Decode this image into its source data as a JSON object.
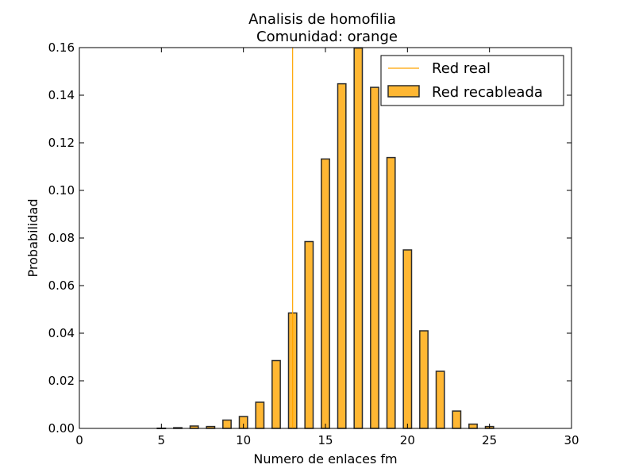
{
  "chart_data": {
    "type": "bar",
    "title": "Analisis de homofilia",
    "subtitle": "Comunidad: orange",
    "xlabel": "Numero de enlaces fm",
    "ylabel": "Probabilidad",
    "xlim": [
      0,
      30
    ],
    "ylim": [
      0,
      0.16
    ],
    "xticks": [
      "0",
      "5",
      "10",
      "15",
      "20",
      "25",
      "30"
    ],
    "yticks": [
      "0.00",
      "0.02",
      "0.04",
      "0.06",
      "0.08",
      "0.10",
      "0.12",
      "0.14",
      "0.16"
    ],
    "grid": false,
    "legend_position": "top-right",
    "colors": {
      "bar_fill": "#ffb733",
      "bar_edge": "#2b2b2b",
      "line": "#ffa500"
    },
    "series": [
      {
        "name": "Red recableada",
        "x": [
          5,
          6,
          7,
          8,
          9,
          10,
          11,
          12,
          13,
          14,
          15,
          16,
          17,
          18,
          19,
          20,
          21,
          22,
          23,
          24,
          25
        ],
        "values": [
          0.0001,
          0.0003,
          0.001,
          0.0008,
          0.0035,
          0.005,
          0.011,
          0.0285,
          0.0485,
          0.0785,
          0.1132,
          0.1448,
          0.1598,
          0.1433,
          0.1138,
          0.075,
          0.041,
          0.024,
          0.0073,
          0.0018,
          0.0008
        ]
      },
      {
        "name": "Red real",
        "kind": "vline",
        "x": 13
      }
    ]
  }
}
